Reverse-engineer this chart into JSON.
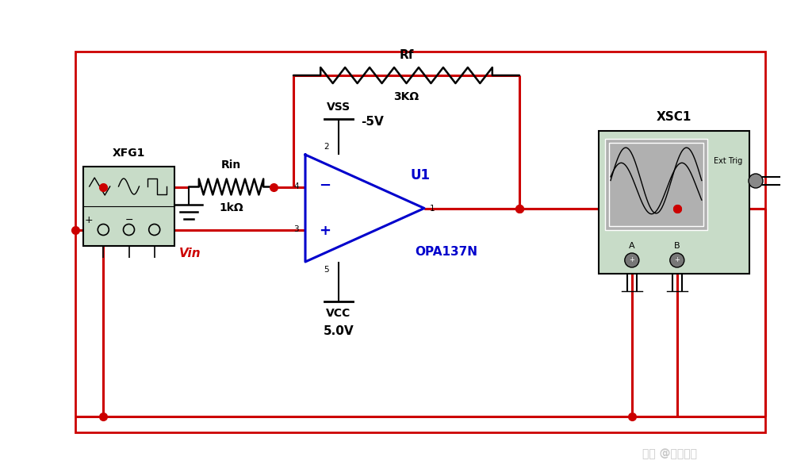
{
  "bg_color": "#ffffff",
  "border_color": "#cc0000",
  "wire_color": "#cc0000",
  "opamp_color": "#0000cc",
  "black": "#000000",
  "red_label": "#cc0000",
  "title_watermark": "知乎 @学海无涯",
  "xfg1_label": "XFG1",
  "xsc1_label": "XSC1",
  "rf_label": "Rf",
  "rf_val": "3KΩ",
  "rin_label": "Rin",
  "rin_val": "1kΩ",
  "vss_label": "VSS",
  "vss_val": "-5V",
  "vcc_label": "VCC",
  "vcc_val": "5.0V",
  "u1_label": "U1",
  "opamp_model": "OPA137N",
  "vin_label": "Vin",
  "ext_trig": "Ext Trig",
  "pin2": "2",
  "pin3": "3",
  "pin4": "4",
  "pin5": "5",
  "pin1": "1",
  "label_A": "A",
  "label_B": "B",
  "minus": "−",
  "plus": "+"
}
